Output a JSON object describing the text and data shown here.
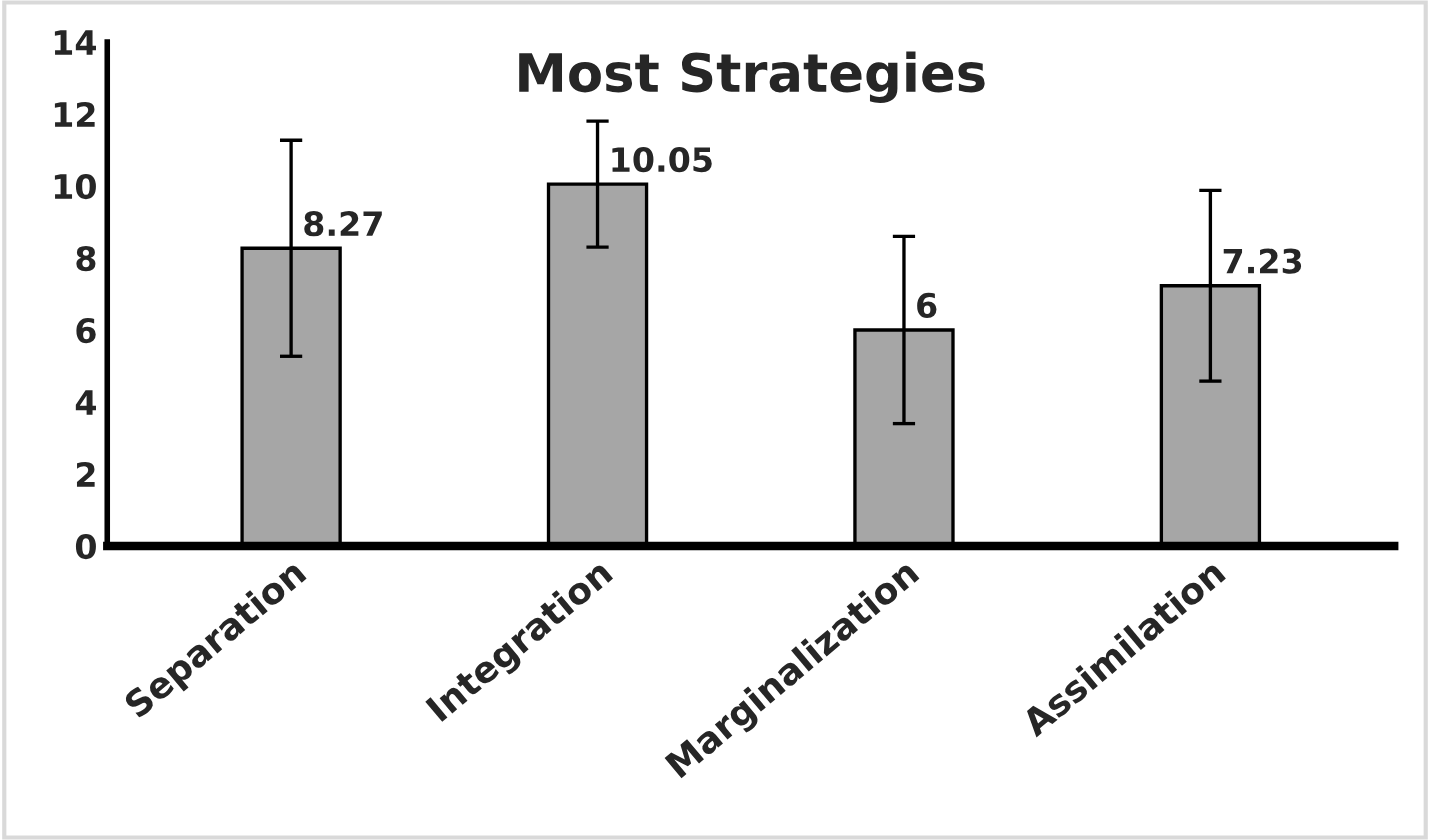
{
  "chart_data": {
    "type": "bar",
    "title": "Most Strategies",
    "categories": [
      "Separation",
      "Integration",
      "Marginalization",
      "Assimilation"
    ],
    "values": [
      8.27,
      10.05,
      6,
      7.23
    ],
    "errors": [
      3.0,
      1.75,
      2.6,
      2.65
    ],
    "color": "#a6a6a6",
    "ylim": [
      0,
      14
    ],
    "yticks": [
      0,
      2,
      4,
      6,
      8,
      10,
      12,
      14
    ],
    "data_labels": true,
    "grid": false,
    "legend": false
  }
}
